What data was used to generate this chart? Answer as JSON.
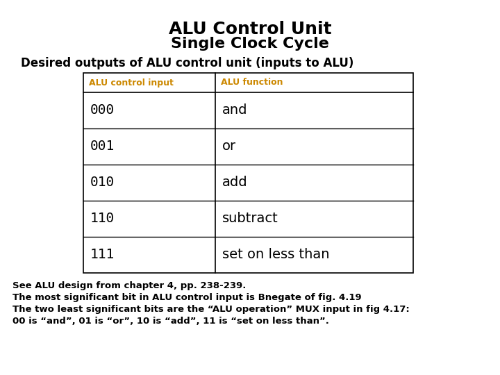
{
  "title_line1": "ALU Control Unit",
  "title_line2": "Single Clock Cycle",
  "subtitle": "Desired outputs of ALU control unit (inputs to ALU)",
  "header_col1": "ALU control input",
  "header_col2": "ALU function",
  "header_color": "#CC8800",
  "table_data": [
    [
      "000",
      "and"
    ],
    [
      "001",
      "or"
    ],
    [
      "010",
      "add"
    ],
    [
      "110",
      "subtract"
    ],
    [
      "111",
      "set on less than"
    ]
  ],
  "footer_lines": [
    "See ALU design from chapter 4, pp. 238-239.",
    "The most significant bit in ALU control input is Bnegate of fig. 4.19",
    "The two least significant bits are the “ALU operation” MUX input in fig 4.17:",
    "00 is “and”, 01 is “or”, 10 is “add”, 11 is “set on less than”."
  ],
  "bg_color": "#ffffff",
  "title_fontsize": 18,
  "subtitle_fontsize": 12,
  "table_header_fontsize": 9,
  "table_data_fontsize": 14,
  "footer_fontsize": 9.5
}
